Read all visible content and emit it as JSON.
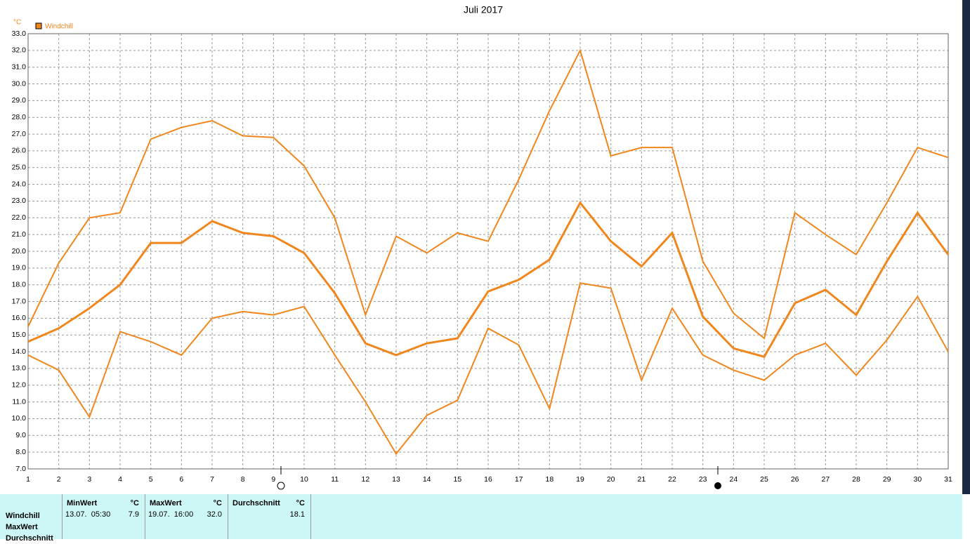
{
  "chart_data": {
    "type": "line",
    "title": "Juli 2017",
    "y_unit": "°C",
    "legend": "Windchill",
    "legend_color": "#f0861c",
    "grid": true,
    "x": [
      1,
      2,
      3,
      4,
      5,
      6,
      7,
      8,
      9,
      10,
      11,
      12,
      13,
      14,
      15,
      16,
      17,
      18,
      19,
      20,
      21,
      22,
      23,
      24,
      25,
      26,
      27,
      28,
      29,
      30,
      31
    ],
    "xlim": [
      1,
      31
    ],
    "xticks": [
      1,
      2,
      3,
      4,
      5,
      6,
      7,
      8,
      9,
      10,
      11,
      12,
      13,
      14,
      15,
      16,
      17,
      18,
      19,
      20,
      21,
      22,
      23,
      24,
      25,
      26,
      27,
      28,
      29,
      30,
      31
    ],
    "ylim": [
      7,
      33
    ],
    "yticks": [
      {
        "value": 7,
        "label": "7.0"
      },
      {
        "value": 8,
        "label": "8.0"
      },
      {
        "value": 9,
        "label": "9.0"
      },
      {
        "value": 10,
        "label": "10.0"
      },
      {
        "value": 11,
        "label": "11.0"
      },
      {
        "value": 12,
        "label": "12.0"
      },
      {
        "value": 13,
        "label": "13.0"
      },
      {
        "value": 14,
        "label": "14.0"
      },
      {
        "value": 15,
        "label": "15.0"
      },
      {
        "value": 16,
        "label": "16.0"
      },
      {
        "value": 17,
        "label": "17.0"
      },
      {
        "value": 18,
        "label": "18.0"
      },
      {
        "value": 19,
        "label": "19.0"
      },
      {
        "value": 20,
        "label": "20.0"
      },
      {
        "value": 21,
        "label": "21.0"
      },
      {
        "value": 22,
        "label": "22.0"
      },
      {
        "value": 23,
        "label": "23.0"
      },
      {
        "value": 24,
        "label": "24.0"
      },
      {
        "value": 25,
        "label": "25.0"
      },
      {
        "value": 26,
        "label": "26.0"
      },
      {
        "value": 27,
        "label": "27.0"
      },
      {
        "value": 28,
        "label": "28.0"
      },
      {
        "value": 29,
        "label": "29.0"
      },
      {
        "value": 30,
        "label": "30.0"
      },
      {
        "value": 31,
        "label": "31.0"
      },
      {
        "value": 32,
        "label": "32.0"
      },
      {
        "value": 33,
        "label": "33.0"
      }
    ],
    "series": [
      {
        "color": "#f0861c",
        "width": 2,
        "values": [
          15.5,
          19.3,
          22.0,
          22.3,
          26.7,
          27.4,
          27.8,
          26.9,
          26.8,
          25.1,
          22.0,
          16.2,
          20.9,
          19.9,
          21.1,
          20.6,
          24.3,
          28.4,
          32.0,
          25.7,
          26.2,
          26.2,
          19.4,
          16.3,
          14.8,
          22.3,
          21.0,
          19.8,
          22.9,
          26.2,
          25.6
        ]
      },
      {
        "color": "#f0861c",
        "width": 3,
        "values": [
          14.6,
          15.4,
          16.6,
          18.0,
          20.5,
          20.5,
          21.8,
          21.1,
          20.9,
          19.9,
          17.5,
          14.5,
          13.8,
          14.5,
          14.8,
          17.6,
          18.3,
          19.5,
          22.9,
          20.6,
          19.1,
          21.1,
          16.1,
          14.2,
          13.7,
          16.9,
          17.7,
          16.2,
          19.4,
          22.3,
          19.8
        ]
      },
      {
        "color": "#f0861c",
        "width": 2,
        "values": [
          13.8,
          12.9,
          10.1,
          15.2,
          14.6,
          13.8,
          16.0,
          16.4,
          16.2,
          16.7,
          13.8,
          11.0,
          7.9,
          10.2,
          11.1,
          15.4,
          14.4,
          10.6,
          18.1,
          17.8,
          12.3,
          16.6,
          13.8,
          12.9,
          12.3,
          13.8,
          14.5,
          12.6,
          14.7,
          17.3,
          14.0
        ]
      }
    ]
  },
  "stats": {
    "row_labels": [
      "Windchill",
      "MaxWert",
      "Durchschnitt"
    ],
    "columns": [
      {
        "header": "MinWert",
        "unit": "°C",
        "time": "13.07.  05:30",
        "value": "7.9"
      },
      {
        "header": "MaxWert",
        "unit": "°C",
        "time": "19.07.  16:00",
        "value": "32.0"
      },
      {
        "header": "Durchschnitt",
        "unit": "°C",
        "value": "18.1"
      }
    ]
  }
}
